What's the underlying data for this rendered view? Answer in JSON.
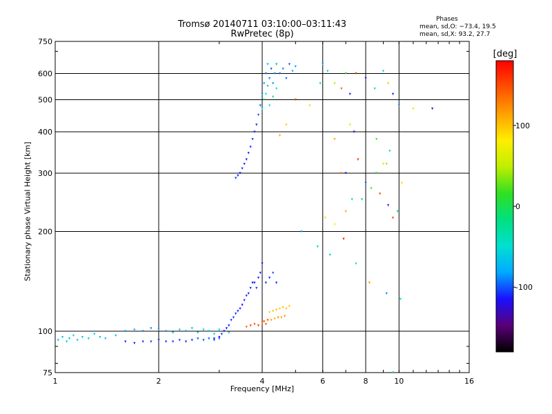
{
  "chart_data": {
    "type": "scatter",
    "title": "Tromsø 20140711 03:10:00–03:11:43",
    "subtitle": "RwPretec (8p)",
    "phases": {
      "heading": "Phases",
      "line1": "mean, sd,O: −73.4, 19.5",
      "line2": "mean, sd,X:  93.2, 27.7"
    },
    "xlabel": "Frequency [MHz]",
    "ylabel": "Stationary phase Virtual Height [km]",
    "xscale": "log",
    "yscale": "log",
    "xlim": [
      1,
      16
    ],
    "ylim": [
      75,
      750
    ],
    "xticks": [
      1,
      2,
      4,
      6,
      8,
      10,
      16
    ],
    "xtick_labels": [
      "1",
      "2",
      "4",
      "6",
      "8",
      "10",
      "16"
    ],
    "yticks": [
      75,
      100,
      200,
      300,
      400,
      500,
      600,
      750
    ],
    "ytick_labels": [
      "75",
      "100",
      "200",
      "300",
      "400",
      "500",
      "600",
      "750"
    ],
    "grid_x": [
      2,
      4,
      6,
      8,
      10
    ],
    "grid_y": [
      100,
      200,
      300,
      400,
      500,
      600
    ],
    "colorbar": {
      "label": "[deg]",
      "ticks": [
        100,
        0,
        -100
      ],
      "tick_labels": [
        "100",
        "0",
        "-100"
      ],
      "range": [
        -180,
        180
      ],
      "colors": [
        "#000000",
        "#5a0078",
        "#1a10ff",
        "#00aaff",
        "#00e0d0",
        "#00e080",
        "#30e020",
        "#c0ee00",
        "#ffee00",
        "#ffa000",
        "#ff5000",
        "#ff0000"
      ]
    },
    "series": [
      {
        "x": [
          1.02,
          1.05,
          1.08,
          1.1,
          1.13,
          1.16,
          1.2,
          1.25,
          1.3,
          1.35,
          1.4,
          1.5,
          1.6,
          1.7,
          1.8,
          1.9,
          2.0,
          2.1,
          2.2,
          2.3,
          2.4,
          2.5,
          2.6,
          2.7,
          2.8,
          2.9,
          3.0,
          3.1,
          3.2
        ],
        "y": [
          94,
          96,
          93,
          95,
          97,
          94,
          96,
          95,
          98,
          96,
          95,
          97,
          100,
          101,
          100,
          102,
          101,
          100,
          99,
          101,
          100,
          102,
          99,
          101,
          100,
          98,
          101,
          100,
          99
        ],
        "phase": [
          -70,
          -65,
          -60,
          -68,
          -62,
          -66,
          -60,
          -63,
          -58,
          -64,
          -62,
          -70,
          -75,
          -80,
          -85,
          -88,
          -82,
          -78,
          -75,
          -70,
          -72,
          -68,
          -66,
          -64,
          -62,
          -60,
          -58,
          -55,
          -60
        ]
      },
      {
        "x": [
          1.6,
          1.7,
          1.8,
          1.9,
          2.0,
          2.1,
          2.2,
          2.3,
          2.4,
          2.5,
          2.6,
          2.7,
          2.8,
          2.9,
          3.0
        ],
        "y": [
          93,
          92,
          93,
          93,
          94,
          93,
          93,
          94,
          93,
          94,
          95,
          94,
          95,
          94,
          95
        ],
        "phase": [
          -110,
          -112,
          -108,
          -105,
          -110,
          -108,
          -106,
          -104,
          -108,
          -110,
          -100,
          -102,
          -98,
          -100,
          -95
        ]
      },
      {
        "x": [
          2.9,
          3.0,
          3.05,
          3.1,
          3.15,
          3.2,
          3.25,
          3.3,
          3.35,
          3.4,
          3.45,
          3.5,
          3.55,
          3.6,
          3.65,
          3.7,
          3.75,
          3.8,
          3.85,
          3.9,
          3.95,
          4.0,
          4.1,
          4.2,
          4.3,
          4.4
        ],
        "y": [
          95,
          96,
          98,
          100,
          102,
          104,
          108,
          110,
          113,
          115,
          117,
          120,
          124,
          128,
          130,
          135,
          140,
          140,
          135,
          145,
          150,
          160,
          140,
          145,
          150,
          140
        ],
        "phase": [
          -110,
          -112,
          -110,
          -108,
          -115,
          -112,
          -110,
          -105,
          -108,
          -110,
          -112,
          -115,
          -110,
          -108,
          -112,
          -110,
          -115,
          -112,
          -108,
          -110,
          -112,
          -115,
          -110,
          -108,
          -100,
          -110
        ]
      },
      {
        "x": [
          3.6,
          3.7,
          3.8,
          3.9,
          4.0,
          4.05,
          4.1,
          4.15
        ],
        "y": [
          103,
          104,
          105,
          104,
          106,
          107,
          105,
          108
        ],
        "phase": [
          140,
          150,
          145,
          155,
          140,
          150,
          145,
          148
        ]
      },
      {
        "x": [
          4.2,
          4.3,
          4.4,
          4.5,
          4.6,
          4.7,
          4.8
        ],
        "y": [
          114,
          115,
          116,
          117,
          118,
          117,
          119
        ],
        "phase": [
          95,
          100,
          105,
          98,
          102,
          100,
          96
        ]
      },
      {
        "x": [
          4.25,
          4.35,
          4.45,
          4.55,
          4.65
        ],
        "y": [
          108,
          109,
          110,
          110,
          111
        ],
        "phase": [
          115,
          110,
          120,
          112,
          118
        ]
      },
      {
        "x": [
          3.35,
          3.4,
          3.45,
          3.5,
          3.55,
          3.6,
          3.65,
          3.7,
          3.75,
          3.8,
          3.85,
          3.9,
          3.95,
          4.0,
          4.05,
          4.1,
          4.15,
          4.2,
          4.25,
          4.3,
          4.35,
          4.4,
          4.5,
          4.6,
          4.7,
          4.8,
          4.9,
          5.0
        ],
        "y": [
          290,
          295,
          300,
          310,
          320,
          330,
          345,
          360,
          380,
          400,
          420,
          450,
          480,
          520,
          560,
          600,
          640,
          580,
          620,
          560,
          600,
          640,
          600,
          620,
          580,
          640,
          610,
          630
        ],
        "phase": [
          -105,
          -110,
          -112,
          -108,
          -110,
          -115,
          -112,
          -110,
          -108,
          -110,
          -112,
          -100,
          -95,
          -90,
          -80,
          -85,
          -70,
          -90,
          -100,
          -85,
          -80,
          -75,
          -85,
          -90,
          -95,
          -100,
          -80,
          -85
        ]
      },
      {
        "x": [
          4.0,
          4.05,
          4.1,
          4.15,
          4.2,
          4.3,
          4.4
        ],
        "y": [
          470,
          500,
          520,
          550,
          480,
          510,
          540
        ],
        "phase": [
          -40,
          -30,
          -45,
          -35,
          -50,
          -40,
          -42
        ]
      },
      {
        "x": [
          4.5,
          4.7,
          5.0,
          5.5,
          6.0,
          6.2,
          6.5,
          6.8,
          7.0,
          7.2,
          7.5,
          8.0,
          8.5,
          9.0,
          9.3,
          9.6,
          10.0,
          11.0,
          12.5,
          7.0,
          7.3,
          6.5,
          8.6,
          9.4,
          9.2,
          5.9
        ],
        "y": [
          390,
          420,
          500,
          480,
          640,
          610,
          560,
          540,
          600,
          520,
          600,
          580,
          540,
          610,
          560,
          520,
          480,
          470,
          470,
          230,
          250,
          210,
          380,
          350,
          320,
          560
        ],
        "phase": [
          110,
          100,
          150,
          90,
          -80,
          -60,
          50,
          140,
          20,
          -110,
          150,
          -120,
          -40,
          -60,
          100,
          -115,
          -90,
          90,
          -130,
          110,
          -20,
          80,
          20,
          -30,
          40,
          -20
        ]
      },
      {
        "x": [
          6.5,
          7.0,
          7.4,
          7.6,
          8.0,
          8.3,
          8.8,
          9.0,
          9.3,
          9.6,
          9.9,
          10.2,
          6.8,
          7.2,
          8.6
        ],
        "y": [
          380,
          300,
          400,
          330,
          280,
          270,
          260,
          320,
          240,
          220,
          230,
          280,
          300,
          420,
          300
        ],
        "phase": [
          110,
          -110,
          -120,
          160,
          -100,
          20,
          150,
          60,
          -110,
          150,
          -20,
          90,
          130,
          60,
          10
        ]
      },
      {
        "x": [
          5.2,
          5.8,
          6.3,
          6.9,
          7.5,
          8.2,
          9.2,
          9.6,
          10.1,
          6.1,
          7.8
        ],
        "y": [
          200,
          180,
          170,
          190,
          160,
          140,
          130,
          75,
          125,
          220,
          250
        ],
        "phase": [
          -60,
          -30,
          -60,
          170,
          -40,
          120,
          -90,
          -30,
          -40,
          90,
          -10
        ]
      }
    ]
  }
}
